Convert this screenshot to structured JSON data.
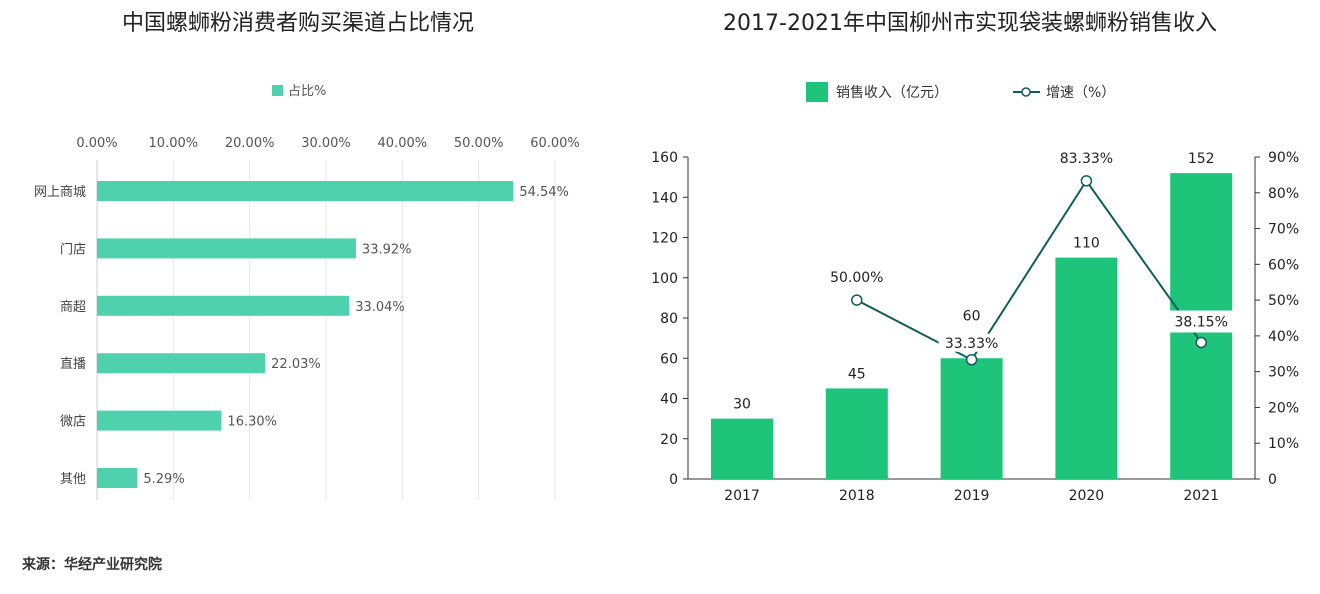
{
  "chart_data": [
    {
      "type": "bar",
      "orientation": "horizontal",
      "title": "中国螺蛳粉消费者购买渠道占比情况",
      "legend": [
        "占比%"
      ],
      "legend_placement": "top",
      "categories": [
        "网上商城",
        "门店",
        "商超",
        "直播",
        "微店",
        "其他"
      ],
      "series": [
        {
          "name": "占比%",
          "values": [
            54.54,
            33.92,
            33.04,
            22.03,
            16.3,
            5.29
          ]
        }
      ],
      "data_labels": [
        "54.54%",
        "33.92%",
        "33.04%",
        "22.03%",
        "16.30%",
        "5.29%"
      ],
      "xlim": [
        0,
        60
      ],
      "x_ticks": [
        "0.00%",
        "10.00%",
        "20.00%",
        "30.00%",
        "40.00%",
        "50.00%",
        "60.00%"
      ],
      "x_axis_position": "top",
      "grid": true,
      "color": "#4fd1ad"
    },
    {
      "type": "bar+line",
      "title": "2017-2021年中国柳州市实现袋装螺蛳粉销售收入",
      "categories": [
        "2017",
        "2018",
        "2019",
        "2020",
        "2021"
      ],
      "legend_placement": "top",
      "series": [
        {
          "name": "销售收入（亿元）",
          "type": "bar",
          "axis": "left",
          "values": [
            30,
            45,
            60,
            110,
            152
          ],
          "labels": [
            "30",
            "45",
            "60",
            "110",
            "152"
          ],
          "color": "#1ec47a"
        },
        {
          "name": "增速（%）",
          "type": "line",
          "axis": "right",
          "values": [
            null,
            50.0,
            33.33,
            83.33,
            38.15
          ],
          "labels": [
            "",
            "50.00%",
            "33.33%",
            "83.33%",
            "38.15%"
          ],
          "color": "#0f5e5a"
        }
      ],
      "ylim_left": [
        0,
        160
      ],
      "y_ticks_left": [
        "0",
        "20",
        "40",
        "60",
        "80",
        "100",
        "120",
        "140",
        "160"
      ],
      "ylim_right": [
        0,
        90
      ],
      "y_ticks_right": [
        "0",
        "10%",
        "20%",
        "30%",
        "40%",
        "50%",
        "60%",
        "70%",
        "80%",
        "90%"
      ],
      "grid": false
    }
  ],
  "source": "来源：华经产业研究院"
}
